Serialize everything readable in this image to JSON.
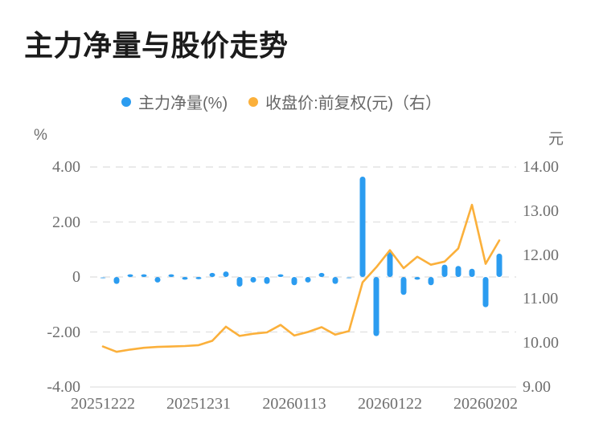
{
  "title": "主力净量与股价走势",
  "legend": [
    {
      "label": "主力净量(%)",
      "color": "#2B9CF0"
    },
    {
      "label": "收盘价:前复权(元)（右）",
      "color": "#FBB03B"
    }
  ],
  "chart_data": {
    "type": "bar+line",
    "title": "主力净量与股价走势",
    "n_points": 30,
    "x_labels": [
      "20251222",
      "20251231",
      "20260113",
      "20260122",
      "20260202"
    ],
    "x_label_indices": [
      0,
      7,
      14,
      21,
      28
    ],
    "left_axis": {
      "unit": "%",
      "range": [
        -4,
        4
      ],
      "ticks": [
        4,
        2,
        0,
        -2,
        -4
      ],
      "tick_labels": [
        "4.00",
        "2.00",
        "0",
        "-2.00",
        "-4.00"
      ]
    },
    "right_axis": {
      "unit": "元",
      "range": [
        9,
        14
      ],
      "ticks": [
        14,
        13,
        12,
        11,
        10,
        9
      ],
      "tick_labels": [
        "14.00",
        "13.00",
        "12.00",
        "11.00",
        "10.00",
        "9.00"
      ]
    },
    "grid": "horizontal dashed",
    "legend_position": "top-center",
    "series": [
      {
        "name": "主力净量(%)",
        "type": "bar",
        "axis": "left",
        "color": "#2B9CF0",
        "values": [
          -0.05,
          -0.25,
          0.1,
          0.1,
          -0.2,
          0.1,
          -0.1,
          -0.08,
          0.15,
          0.2,
          -0.35,
          -0.2,
          -0.25,
          0.1,
          -0.3,
          -0.2,
          0.15,
          -0.25,
          -0.05,
          3.65,
          -2.15,
          0.9,
          -0.65,
          -0.1,
          -0.3,
          0.45,
          0.4,
          0.3,
          -1.1,
          0.85
        ]
      },
      {
        "name": "收盘价:前复权(元)（右）",
        "type": "line",
        "axis": "right",
        "color": "#FBB03B",
        "values": [
          9.92,
          9.8,
          9.85,
          9.89,
          9.91,
          9.92,
          9.93,
          9.95,
          10.05,
          10.37,
          10.16,
          10.21,
          10.24,
          10.41,
          10.17,
          10.25,
          10.36,
          10.19,
          10.27,
          11.38,
          11.72,
          12.11,
          11.7,
          11.96,
          11.78,
          11.85,
          12.15,
          13.14,
          11.8,
          12.33
        ]
      }
    ]
  }
}
